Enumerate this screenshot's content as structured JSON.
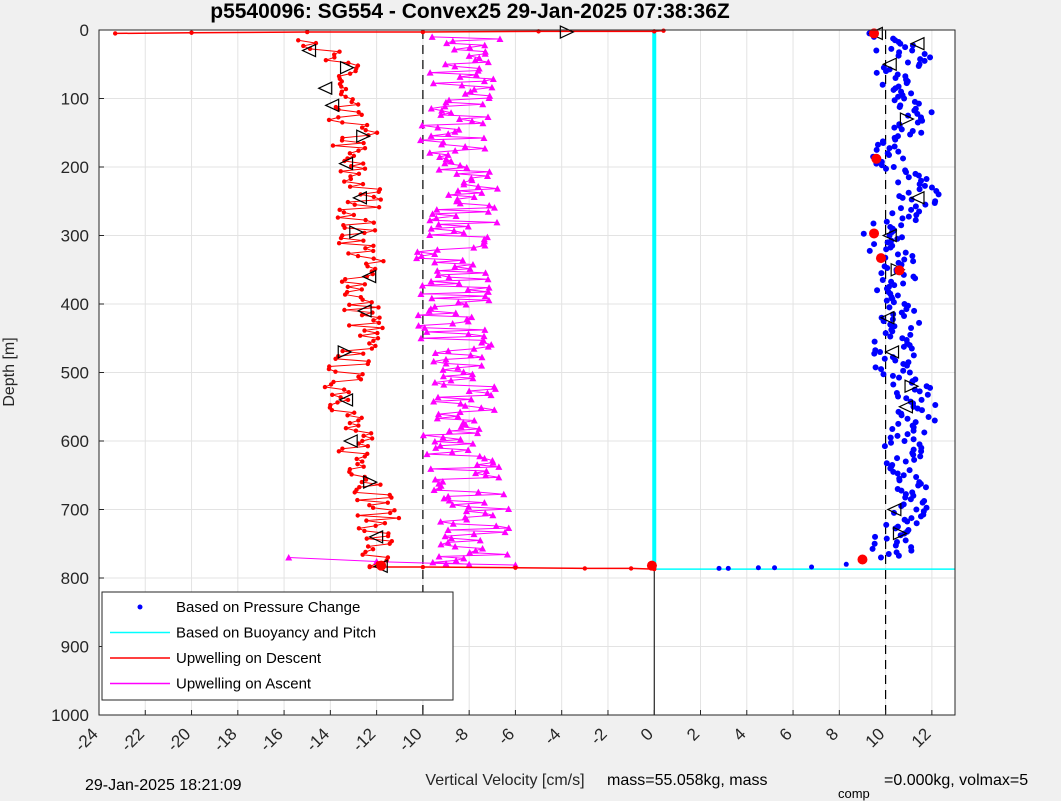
{
  "chart_data": {
    "type": "scatter",
    "title": "p5540096: SG554 - Convex25 29-Jan-2025 07:38:36Z",
    "xlabel": "Vertical Velocity [cm/s]",
    "ylabel": "Depth [m]",
    "xlim": [
      -24,
      13
    ],
    "ylim": [
      0,
      1000
    ],
    "y_reversed": true,
    "grid": true,
    "x_ticks": [
      -24,
      -22,
      -20,
      -18,
      -16,
      -14,
      -12,
      -10,
      -8,
      -6,
      -4,
      -2,
      0,
      2,
      4,
      6,
      8,
      10,
      12
    ],
    "y_ticks": [
      0,
      100,
      200,
      300,
      400,
      500,
      600,
      700,
      800,
      900,
      1000
    ],
    "reference_lines_x": [
      -10,
      10
    ],
    "legend_position": "bottom-left",
    "legend": [
      {
        "label": "Based on Pressure Change",
        "color": "#0000ff",
        "style": "dot"
      },
      {
        "label": "Based on Buoyancy and Pitch",
        "color": "#00ffff",
        "style": "line"
      },
      {
        "label": "Upwelling on Descent",
        "color": "#ff0000",
        "style": "line"
      },
      {
        "label": "Upwelling on Ascent",
        "color": "#ff00ff",
        "style": "line"
      }
    ],
    "series": [
      {
        "name": "Based on Pressure Change",
        "color": "#0000ff",
        "descent_surface": [
          [
            9.3,
            5
          ],
          [
            9.6,
            30
          ]
        ],
        "ascent_bottom": [
          [
            2.8,
            786
          ],
          [
            3.2,
            786
          ],
          [
            4.5,
            785
          ],
          [
            5.2,
            785
          ],
          [
            6.8,
            784
          ],
          [
            8.3,
            780
          ]
        ],
        "points": [
          [
            9.5,
            10
          ],
          [
            10.5,
            25
          ],
          [
            11.3,
            40
          ],
          [
            10.2,
            70
          ],
          [
            10.8,
            100
          ],
          [
            11.4,
            130
          ],
          [
            10.6,
            160
          ],
          [
            10.1,
            190
          ],
          [
            11.2,
            220
          ],
          [
            11.5,
            250
          ],
          [
            10.4,
            280
          ],
          [
            9.8,
            300
          ],
          [
            10.3,
            330
          ],
          [
            10.7,
            360
          ],
          [
            10.1,
            400
          ],
          [
            10.9,
            430
          ],
          [
            10.3,
            460
          ],
          [
            10.4,
            490
          ],
          [
            11.0,
            520
          ],
          [
            11.3,
            550
          ],
          [
            11.2,
            580
          ],
          [
            10.8,
            610
          ],
          [
            11.0,
            640
          ],
          [
            11.1,
            670
          ],
          [
            10.9,
            700
          ],
          [
            10.5,
            730
          ],
          [
            10.3,
            760
          ],
          [
            9.8,
            770
          ]
        ]
      },
      {
        "name": "Based on Buoyancy and Pitch",
        "color": "#00ffff",
        "points": [
          [
            0,
            0
          ],
          [
            0,
            100
          ],
          [
            0,
            200
          ],
          [
            0,
            300
          ],
          [
            0,
            400
          ],
          [
            0,
            500
          ],
          [
            0,
            600
          ],
          [
            0,
            700
          ],
          [
            0,
            786
          ]
        ],
        "bottom_line": [
          [
            0,
            787
          ],
          [
            13,
            787
          ]
        ]
      },
      {
        "name": "Upwelling on Descent",
        "color": "#ff0000",
        "surface": [
          [
            -23.3,
            5
          ],
          [
            -20,
            4
          ],
          [
            -15,
            3
          ],
          [
            -10,
            3
          ],
          [
            -5,
            2
          ],
          [
            0,
            2
          ],
          [
            0.4,
            1
          ]
        ],
        "points": [
          [
            -14.5,
            15
          ],
          [
            -14.3,
            40
          ],
          [
            -13.2,
            60
          ],
          [
            -13.8,
            90
          ],
          [
            -13.6,
            120
          ],
          [
            -12.8,
            150
          ],
          [
            -13.4,
            180
          ],
          [
            -13.1,
            210
          ],
          [
            -12.4,
            240
          ],
          [
            -12.8,
            270
          ],
          [
            -12.9,
            300
          ],
          [
            -12.5,
            330
          ],
          [
            -12.6,
            360
          ],
          [
            -12.9,
            390
          ],
          [
            -12.4,
            420
          ],
          [
            -12.6,
            450
          ],
          [
            -13.1,
            480
          ],
          [
            -13.5,
            510
          ],
          [
            -13.2,
            540
          ],
          [
            -13.2,
            570
          ],
          [
            -13.0,
            600
          ],
          [
            -12.7,
            630
          ],
          [
            -12.1,
            660
          ],
          [
            -12.0,
            690
          ],
          [
            -11.9,
            720
          ],
          [
            -12.0,
            750
          ],
          [
            -12.2,
            770
          ],
          [
            -12.3,
            783
          ]
        ],
        "bottom": [
          [
            -12.3,
            784
          ],
          [
            -10,
            784
          ],
          [
            -6,
            785
          ],
          [
            -3,
            786
          ],
          [
            -1,
            786
          ],
          [
            0,
            787
          ]
        ]
      },
      {
        "name": "Upwelling on Ascent",
        "color": "#ff00ff",
        "points": [
          [
            -8.0,
            10
          ],
          [
            -8.2,
            50
          ],
          [
            -8.4,
            90
          ],
          [
            -8.6,
            130
          ],
          [
            -8.7,
            170
          ],
          [
            -8.4,
            210
          ],
          [
            -8.0,
            250
          ],
          [
            -8.5,
            290
          ],
          [
            -8.7,
            330
          ],
          [
            -8.4,
            370
          ],
          [
            -8.8,
            410
          ],
          [
            -8.6,
            450
          ],
          [
            -8.7,
            490
          ],
          [
            -8.4,
            530
          ],
          [
            -8.3,
            570
          ],
          [
            -8.6,
            610
          ],
          [
            -8.0,
            650
          ],
          [
            -7.9,
            690
          ],
          [
            -7.8,
            730
          ],
          [
            -7.9,
            760
          ],
          [
            -8.0,
            780
          ]
        ],
        "bottom": [
          [
            -15.8,
            770
          ],
          [
            -12,
            776
          ],
          [
            -9,
            779
          ],
          [
            -6,
            781
          ]
        ]
      }
    ],
    "markers": {
      "triangles": [
        [
          -3.8,
          3
        ],
        [
          9.6,
          5
        ],
        [
          -14.9,
          30
        ],
        [
          -13.3,
          55
        ],
        [
          -14.2,
          85
        ],
        [
          -13.9,
          110
        ],
        [
          -12.6,
          155
        ],
        [
          -13.3,
          195
        ],
        [
          -12.7,
          245
        ],
        [
          -12.9,
          295
        ],
        [
          -12.3,
          360
        ],
        [
          -12.5,
          410
        ],
        [
          -13.4,
          470
        ],
        [
          -13.3,
          540
        ],
        [
          -13.1,
          600
        ],
        [
          -12.3,
          660
        ],
        [
          -12.0,
          740
        ],
        [
          10.2,
          50
        ],
        [
          10.9,
          130
        ],
        [
          11.4,
          245
        ],
        [
          10.2,
          300
        ],
        [
          10.5,
          350
        ],
        [
          10.1,
          420
        ],
        [
          10.3,
          470
        ],
        [
          11.1,
          520
        ],
        [
          10.9,
          550
        ],
        [
          10.4,
          700
        ],
        [
          10.6,
          735
        ],
        [
          11.4,
          20
        ],
        [
          -11.8,
          783
        ]
      ],
      "red_dots": [
        [
          -11.8,
          782
        ],
        [
          -0.1,
          782
        ],
        [
          9.5,
          5
        ],
        [
          9.6,
          188
        ],
        [
          9.5,
          297
        ],
        [
          9.8,
          333
        ],
        [
          10.6,
          351
        ],
        [
          9.0,
          773
        ]
      ]
    }
  },
  "footer": {
    "timestamp": "29-Jan-2025 18:21:09",
    "xlabel_text": "Vertical Velocity [cm/s]",
    "mass_text_1": "mass=55.058kg, mass",
    "mass_subscript": "comp",
    "mass_text_2": "=0.000kg, volmax=5"
  }
}
